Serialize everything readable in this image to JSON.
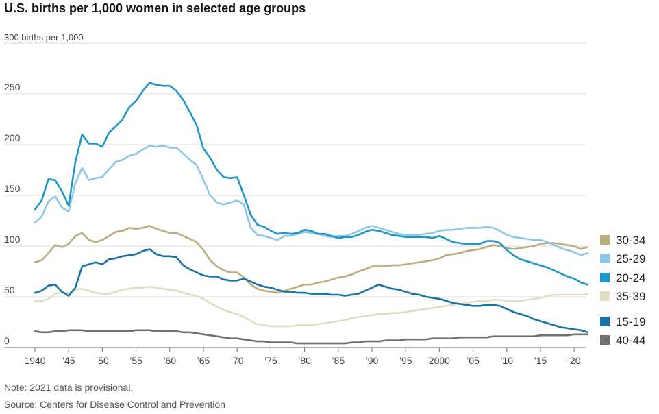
{
  "chart_data": {
    "type": "line",
    "title": "U.S. births per 1,000 women in selected age groups",
    "ylabel": "300 births per 1,000",
    "ylim": [
      0,
      300
    ],
    "xlim": [
      1940,
      2021
    ],
    "yticks": [
      0,
      50,
      100,
      150,
      200,
      250
    ],
    "xticks": [
      {
        "value": 1940,
        "label": "1940"
      },
      {
        "value": 1945,
        "label": "'45"
      },
      {
        "value": 1950,
        "label": "'50"
      },
      {
        "value": 1955,
        "label": "'55"
      },
      {
        "value": 1960,
        "label": "'60"
      },
      {
        "value": 1965,
        "label": "'65"
      },
      {
        "value": 1970,
        "label": "'70"
      },
      {
        "value": 1975,
        "label": "'75"
      },
      {
        "value": 1980,
        "label": "'80"
      },
      {
        "value": 1985,
        "label": "'85"
      },
      {
        "value": 1990,
        "label": "'90"
      },
      {
        "value": 1995,
        "label": "'95"
      },
      {
        "value": 2000,
        "label": "2000"
      },
      {
        "value": 2005,
        "label": "'05"
      },
      {
        "value": 2010,
        "label": "'10"
      },
      {
        "value": 2015,
        "label": "'15"
      },
      {
        "value": 2020,
        "label": "'20"
      }
    ],
    "x_start": 1940,
    "legend_position": "right",
    "series": [
      {
        "name": "30-34",
        "color": "#b8ad7c",
        "values": [
          84,
          86,
          93,
          101,
          99,
          102,
          110,
          113,
          106,
          104,
          106,
          110,
          114,
          115,
          118,
          117,
          118,
          120,
          117,
          115,
          113,
          113,
          110,
          107,
          104,
          96,
          86,
          80,
          76,
          74,
          74,
          69,
          62,
          58,
          56,
          55,
          54,
          56,
          58,
          60,
          62,
          62,
          64,
          65,
          67,
          69,
          70,
          72,
          75,
          77,
          80,
          80,
          80,
          81,
          81,
          82,
          83,
          84,
          85,
          86,
          88,
          91,
          92,
          93,
          95,
          96,
          97,
          99,
          101,
          100,
          98,
          97,
          98,
          99,
          100,
          102,
          103,
          103,
          102,
          101,
          100,
          97,
          99
        ]
      },
      {
        "name": "25-29",
        "color": "#8ec6e8",
        "values": [
          123,
          129,
          144,
          149,
          138,
          134,
          162,
          177,
          165,
          167,
          168,
          176,
          183,
          185,
          189,
          191,
          195,
          199,
          198,
          199,
          197,
          197,
          191,
          185,
          180,
          165,
          150,
          143,
          141,
          143,
          145,
          141,
          118,
          111,
          110,
          108,
          106,
          110,
          110,
          112,
          114,
          113,
          112,
          110,
          109,
          110,
          110,
          112,
          115,
          118,
          120,
          118,
          116,
          114,
          112,
          111,
          111,
          111,
          112,
          113,
          115,
          116,
          116,
          117,
          118,
          118,
          118,
          119,
          118,
          115,
          111,
          109,
          108,
          107,
          106,
          106,
          104,
          101,
          98,
          96,
          94,
          91,
          93
        ]
      },
      {
        "name": "20-24",
        "color": "#1d96cd",
        "values": [
          136,
          145,
          166,
          165,
          154,
          140,
          183,
          210,
          201,
          201,
          198,
          212,
          218,
          225,
          237,
          243,
          253,
          261,
          259,
          258,
          258,
          253,
          244,
          232,
          219,
          196,
          187,
          175,
          168,
          167,
          168,
          150,
          131,
          121,
          119,
          115,
          112,
          113,
          112,
          113,
          116,
          115,
          112,
          112,
          110,
          108,
          109,
          109,
          111,
          114,
          116,
          115,
          113,
          111,
          110,
          109,
          109,
          109,
          109,
          108,
          110,
          107,
          104,
          103,
          102,
          102,
          102,
          105,
          105,
          103,
          96,
          91,
          87,
          85,
          83,
          81,
          79,
          76,
          73,
          70,
          68,
          64,
          62
        ]
      },
      {
        "name": "35-39",
        "color": "#e2dcc0",
        "values": [
          46,
          46,
          48,
          53,
          54,
          54,
          57,
          58,
          56,
          54,
          53,
          53,
          55,
          57,
          58,
          59,
          59,
          60,
          59,
          58,
          57,
          56,
          54,
          52,
          51,
          48,
          44,
          40,
          37,
          35,
          33,
          30,
          26,
          23,
          22,
          21,
          21,
          21,
          21,
          22,
          22,
          22,
          23,
          24,
          25,
          26,
          27,
          29,
          30,
          31,
          32,
          33,
          33,
          34,
          34,
          35,
          36,
          37,
          38,
          39,
          40,
          41,
          42,
          43,
          44,
          45,
          46,
          46,
          47,
          47,
          46,
          46,
          46,
          47,
          48,
          49,
          51,
          52,
          52,
          52,
          52,
          52,
          53
        ]
      },
      {
        "name": "15-19",
        "color": "#1872a8",
        "values": [
          54,
          56,
          61,
          62,
          55,
          51,
          59,
          80,
          82,
          84,
          82,
          87,
          88,
          90,
          91,
          92,
          95,
          97,
          92,
          90,
          90,
          89,
          81,
          77,
          74,
          71,
          70,
          70,
          67,
          66,
          66,
          68,
          65,
          62,
          60,
          59,
          57,
          55,
          55,
          54,
          54,
          53,
          53,
          53,
          52,
          52,
          51,
          52,
          53,
          56,
          59,
          62,
          60,
          58,
          57,
          55,
          53,
          52,
          50,
          49,
          48,
          46,
          44,
          43,
          42,
          41,
          41,
          42,
          42,
          41,
          38,
          35,
          33,
          31,
          28,
          26,
          24,
          22,
          20,
          19,
          18,
          17,
          15
        ]
      },
      {
        "name": "40-44",
        "color": "#707070",
        "values": [
          16,
          15,
          15,
          16,
          16,
          17,
          17,
          17,
          16,
          16,
          16,
          16,
          16,
          16,
          16,
          17,
          17,
          17,
          16,
          16,
          16,
          16,
          15,
          15,
          14,
          13,
          12,
          11,
          10,
          9,
          9,
          8,
          7,
          6,
          6,
          5,
          5,
          5,
          5,
          4,
          4,
          4,
          4,
          4,
          4,
          4,
          4,
          5,
          5,
          6,
          6,
          6,
          7,
          7,
          7,
          8,
          8,
          8,
          8,
          9,
          9,
          9,
          9,
          10,
          10,
          10,
          10,
          10,
          11,
          11,
          11,
          11,
          11,
          11,
          11,
          12,
          12,
          12,
          12,
          12,
          13,
          13,
          13
        ]
      }
    ]
  },
  "notes": {
    "note": "Note: 2021 data is provisional.",
    "source": "Source: Centers for Disease Control and Prevention"
  }
}
